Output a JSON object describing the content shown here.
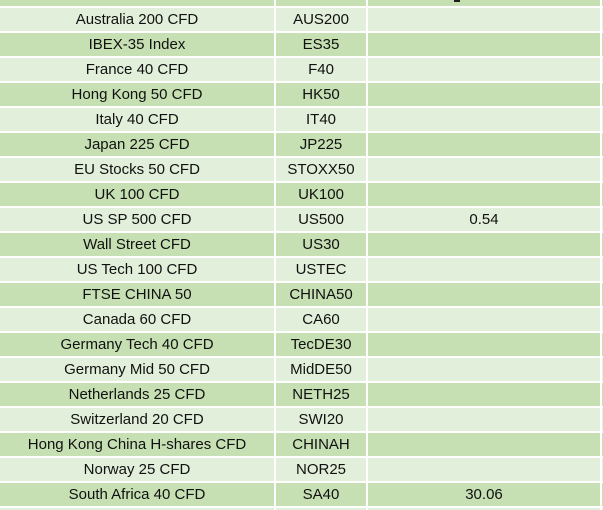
{
  "colors": {
    "row_light": "#e2efda",
    "row_medium": "#c6e0b4",
    "gridline": "#ffffff",
    "text": "#111111"
  },
  "table": {
    "rows": [
      {
        "name": "Australia 200 CFD",
        "symbol": "AUS200",
        "value": ""
      },
      {
        "name": "IBEX-35 Index",
        "symbol": "ES35",
        "value": ""
      },
      {
        "name": "France 40 CFD",
        "symbol": "F40",
        "value": ""
      },
      {
        "name": "Hong Kong 50 CFD",
        "symbol": "HK50",
        "value": ""
      },
      {
        "name": "Italy 40 CFD",
        "symbol": "IT40",
        "value": ""
      },
      {
        "name": "Japan 225 CFD",
        "symbol": "JP225",
        "value": ""
      },
      {
        "name": "EU Stocks 50 CFD",
        "symbol": "STOXX50",
        "value": ""
      },
      {
        "name": "UK 100 CFD",
        "symbol": "UK100",
        "value": ""
      },
      {
        "name": "US SP 500 CFD",
        "symbol": "US500",
        "value": "0.54"
      },
      {
        "name": "Wall Street CFD",
        "symbol": "US30",
        "value": ""
      },
      {
        "name": "US Tech 100 CFD",
        "symbol": "USTEC",
        "value": ""
      },
      {
        "name": "FTSE CHINA 50",
        "symbol": "CHINA50",
        "value": ""
      },
      {
        "name": "Canada 60 CFD",
        "symbol": "CA60",
        "value": ""
      },
      {
        "name": "Germany Tech 40 CFD",
        "symbol": "TecDE30",
        "value": ""
      },
      {
        "name": "Germany Mid 50 CFD",
        "symbol": "MidDE50",
        "value": ""
      },
      {
        "name": "Netherlands 25 CFD",
        "symbol": "NETH25",
        "value": ""
      },
      {
        "name": "Switzerland 20 CFD",
        "symbol": "SWI20",
        "value": ""
      },
      {
        "name": "Hong Kong China H-shares CFD",
        "symbol": "CHINAH",
        "value": ""
      },
      {
        "name": "Norway 25 CFD",
        "symbol": "NOR25",
        "value": ""
      },
      {
        "name": "South Africa 40 CFD",
        "symbol": "SA40",
        "value": "30.06"
      }
    ]
  }
}
